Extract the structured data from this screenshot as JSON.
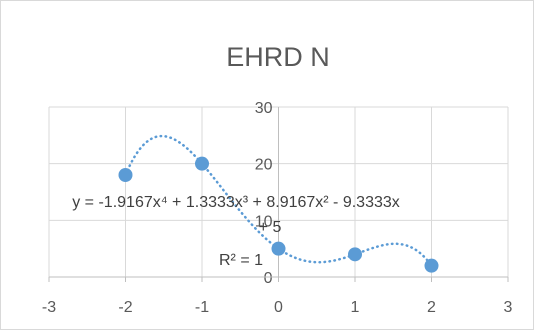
{
  "chart_data": {
    "type": "scatter",
    "title": "EHRD N",
    "xlabel": "",
    "ylabel": "",
    "xlim": [
      -3,
      3
    ],
    "ylim": [
      0,
      30
    ],
    "x_ticks": [
      "-3",
      "-2",
      "-1",
      "0",
      "1",
      "2",
      "3"
    ],
    "y_ticks": [
      "0",
      "10",
      "20",
      "30"
    ],
    "x_tick_values": [
      -3,
      -2,
      -1,
      0,
      1,
      2,
      3
    ],
    "y_tick_values": [
      0,
      10,
      20,
      30
    ],
    "grid": true,
    "series": [
      {
        "x": [
          -2,
          -1,
          0,
          1,
          2
        ],
        "y": [
          18,
          20,
          5,
          4,
          2
        ]
      }
    ],
    "trendline": {
      "type": "polynomial",
      "order": 4,
      "coefficients": [
        -1.9167,
        1.3333,
        8.9167,
        -9.3333,
        5
      ],
      "style": "dotted",
      "equation_line1": "y = -1.9167x⁴ + 1.3333x³ + 8.9167x² - 9.3333x",
      "equation_line2": "+ 5",
      "r_squared": "R² = 1"
    },
    "colors": {
      "marker": "#5b9bd5",
      "trendline": "#5b9bd5",
      "grid": "#d9d9d9",
      "axis": "#bfbfbf",
      "text": "#595959"
    }
  }
}
